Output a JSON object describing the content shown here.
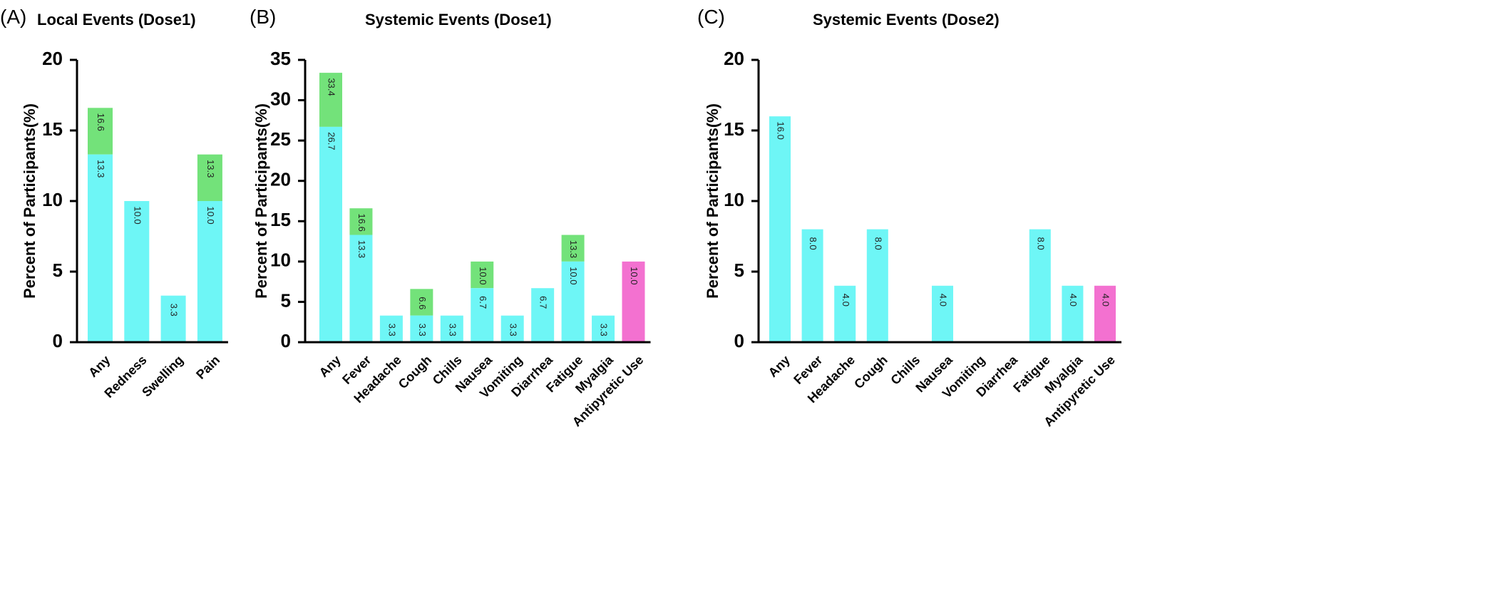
{
  "colors": {
    "base": "#6ef6f6",
    "top": "#73e27a",
    "single": "#f371d0",
    "axis": "#000000",
    "text": "#000000"
  },
  "ylabel": "Percent of Participants(%)",
  "chart_data": [
    {
      "type": "bar",
      "panel": "(A)",
      "title": "Local Events (Dose1)",
      "ylabel": "Percent of Participants(%)",
      "ylim": [
        0,
        20
      ],
      "yticks": [
        0,
        5,
        10,
        15,
        20
      ],
      "categories": [
        "Any",
        "Redness",
        "Swelling",
        "Pain"
      ],
      "base": [
        13.3,
        10.0,
        3.3,
        10.0
      ],
      "top": [
        16.6,
        null,
        null,
        13.3
      ],
      "single": [
        null,
        null,
        null,
        null
      ],
      "grid": false
    },
    {
      "type": "bar",
      "panel": "(B)",
      "title": "Systemic Events (Dose1)",
      "ylabel": "Percent of Participants(%)",
      "ylim": [
        0,
        35
      ],
      "yticks": [
        0,
        5,
        10,
        15,
        20,
        25,
        30,
        35
      ],
      "categories": [
        "Any",
        "Fever",
        "Headache",
        "Cough",
        "Chills",
        "Nausea",
        "Vomiting",
        "Diarrhea",
        "Fatigue",
        "Myalgia",
        "Antipyretic Use"
      ],
      "base": [
        26.7,
        13.3,
        3.3,
        3.3,
        3.3,
        6.7,
        3.3,
        6.7,
        10.0,
        3.3,
        null
      ],
      "top": [
        33.4,
        16.6,
        null,
        6.6,
        null,
        10.0,
        null,
        null,
        13.3,
        null,
        null
      ],
      "single": [
        null,
        null,
        null,
        null,
        null,
        null,
        null,
        null,
        null,
        null,
        10.0
      ],
      "grid": false
    },
    {
      "type": "bar",
      "panel": "(C)",
      "title": "Systemic Events (Dose2)",
      "ylabel": "Percent of Participants(%)",
      "ylim": [
        0,
        20
      ],
      "yticks": [
        0,
        5,
        10,
        15,
        20
      ],
      "categories": [
        "Any",
        "Fever",
        "Headache",
        "Cough",
        "Chills",
        "Nausea",
        "Vomiting",
        "Diarrhea",
        "Fatigue",
        "Myalgia",
        "Antipyretic Use"
      ],
      "base": [
        16.0,
        8.0,
        4.0,
        8.0,
        null,
        4.0,
        null,
        null,
        8.0,
        4.0,
        null
      ],
      "top": [
        null,
        null,
        null,
        null,
        null,
        null,
        null,
        null,
        null,
        null,
        null
      ],
      "single": [
        null,
        null,
        null,
        null,
        null,
        null,
        null,
        null,
        null,
        null,
        4.0
      ],
      "grid": false
    }
  ]
}
